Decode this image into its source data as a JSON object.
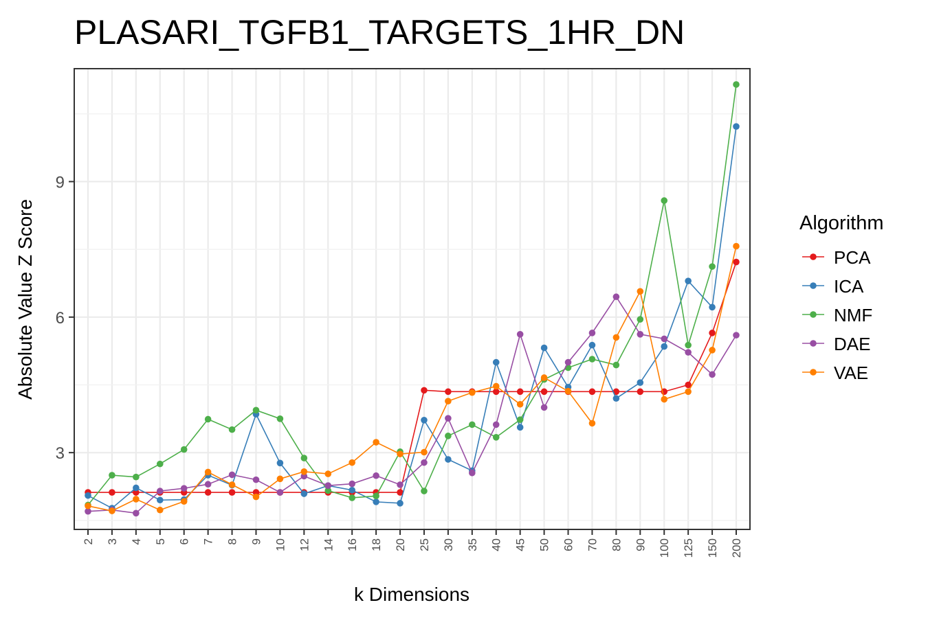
{
  "chart_data": {
    "type": "line",
    "title": "PLASARI_TGFB1_TARGETS_1HR_DN",
    "xlabel": "k Dimensions",
    "ylabel": "Absolute Value Z Score",
    "categories": [
      "2",
      "3",
      "4",
      "5",
      "6",
      "7",
      "8",
      "9",
      "10",
      "12",
      "14",
      "16",
      "18",
      "20",
      "25",
      "30",
      "35",
      "40",
      "45",
      "50",
      "60",
      "70",
      "80",
      "90",
      "100",
      "125",
      "150",
      "200"
    ],
    "yticks": [
      3,
      6,
      9
    ],
    "ylim": [
      1.3,
      11.5
    ],
    "grid": true,
    "legend": {
      "title": "Algorithm",
      "position": "right"
    },
    "series": [
      {
        "name": "PCA",
        "color": "#e41a1c",
        "values": [
          2.12,
          2.12,
          2.12,
          2.12,
          2.12,
          2.12,
          2.12,
          2.12,
          2.12,
          2.12,
          2.12,
          2.12,
          2.12,
          2.12,
          4.38,
          4.35,
          4.35,
          4.35,
          4.35,
          4.35,
          4.35,
          4.35,
          4.35,
          4.35,
          4.35,
          4.5,
          5.65,
          7.22
        ]
      },
      {
        "name": "ICA",
        "color": "#377eb8",
        "values": [
          2.05,
          1.77,
          2.22,
          1.95,
          1.96,
          2.5,
          2.28,
          3.85,
          2.77,
          2.09,
          2.27,
          2.17,
          1.91,
          1.88,
          3.72,
          2.85,
          2.6,
          5.0,
          3.56,
          5.32,
          4.45,
          5.38,
          4.2,
          4.55,
          5.35,
          6.8,
          6.22,
          10.22
        ]
      },
      {
        "name": "NMF",
        "color": "#4daf4a",
        "values": [
          1.84,
          2.5,
          2.46,
          2.75,
          3.07,
          3.74,
          3.51,
          3.94,
          3.75,
          2.88,
          2.16,
          2.0,
          2.04,
          3.02,
          2.15,
          3.37,
          3.62,
          3.34,
          3.73,
          4.62,
          4.88,
          5.07,
          4.94,
          5.95,
          8.58,
          5.38,
          7.12,
          11.15
        ]
      },
      {
        "name": "DAE",
        "color": "#984ea3",
        "values": [
          1.7,
          1.73,
          1.66,
          2.15,
          2.21,
          2.3,
          2.51,
          2.4,
          2.12,
          2.48,
          2.27,
          2.31,
          2.49,
          2.29,
          2.78,
          3.76,
          2.55,
          3.62,
          5.62,
          4.0,
          5.0,
          5.65,
          6.45,
          5.62,
          5.52,
          5.22,
          4.73,
          5.6
        ]
      },
      {
        "name": "VAE",
        "color": "#ff7f00",
        "values": [
          1.82,
          1.71,
          1.97,
          1.73,
          1.92,
          2.57,
          2.29,
          2.02,
          2.42,
          2.58,
          2.53,
          2.78,
          3.23,
          2.97,
          3.01,
          4.14,
          4.33,
          4.47,
          4.07,
          4.66,
          4.36,
          3.65,
          5.55,
          6.57,
          4.18,
          4.35,
          5.27,
          7.57
        ]
      }
    ]
  }
}
